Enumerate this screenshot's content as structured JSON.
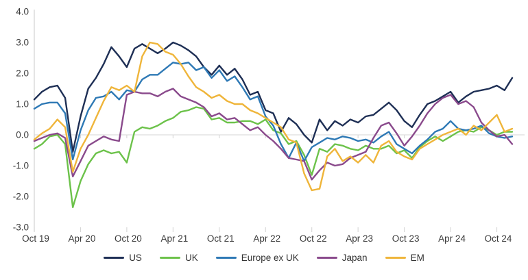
{
  "styles": {
    "background": "#ffffff",
    "axis_color": "#d6d6d6",
    "label_color": "#3a3a3a",
    "line_width": 2.4
  },
  "chart_data": {
    "type": "line",
    "title": "",
    "xlabel": "",
    "ylabel": "",
    "grid": "zero-line-only",
    "legend_position": "bottom",
    "y_axis": {
      "min": -3.0,
      "max": 4.0,
      "tick_step": 1.0,
      "tick_labels": [
        "4.0",
        "3.0",
        "2.0",
        "1.0",
        "0.0",
        "-1.0",
        "-2.0",
        "-3.0"
      ]
    },
    "x_axis": {
      "tick_labels": [
        "Oct 19",
        "Apr 20",
        "Oct 20",
        "Apr 21",
        "Oct 21",
        "Apr 22",
        "Oct 22",
        "Apr 23",
        "Oct 23",
        "Apr 24",
        "Oct 24"
      ],
      "months_between_ticks": 6
    },
    "months": [
      "2019-10",
      "2019-11",
      "2019-12",
      "2020-01",
      "2020-02",
      "2020-03",
      "2020-04",
      "2020-05",
      "2020-06",
      "2020-07",
      "2020-08",
      "2020-09",
      "2020-10",
      "2020-11",
      "2020-12",
      "2021-01",
      "2021-02",
      "2021-03",
      "2021-04",
      "2021-05",
      "2021-06",
      "2021-07",
      "2021-08",
      "2021-09",
      "2021-10",
      "2021-11",
      "2021-12",
      "2022-01",
      "2022-02",
      "2022-03",
      "2022-04",
      "2022-05",
      "2022-06",
      "2022-07",
      "2022-08",
      "2022-09",
      "2022-10",
      "2022-11",
      "2022-12",
      "2023-01",
      "2023-02",
      "2023-03",
      "2023-04",
      "2023-05",
      "2023-06",
      "2023-07",
      "2023-08",
      "2023-09",
      "2023-10",
      "2023-11",
      "2023-12",
      "2024-01",
      "2024-02",
      "2024-03",
      "2024-04",
      "2024-05",
      "2024-06",
      "2024-07",
      "2024-08",
      "2024-09",
      "2024-10",
      "2024-11",
      "2024-12"
    ],
    "series": [
      {
        "name": "US",
        "color": "#1e2f55",
        "values": [
          1.15,
          1.4,
          1.55,
          1.6,
          1.2,
          -0.55,
          0.6,
          1.5,
          1.85,
          2.3,
          2.85,
          2.55,
          2.2,
          2.8,
          2.95,
          2.8,
          2.65,
          2.8,
          3.0,
          2.9,
          2.75,
          2.55,
          2.2,
          1.95,
          2.25,
          1.95,
          2.15,
          1.8,
          1.3,
          1.4,
          0.8,
          0.7,
          0.1,
          0.55,
          0.35,
          0.0,
          -0.25,
          0.5,
          0.15,
          0.45,
          0.3,
          0.5,
          0.4,
          0.6,
          0.65,
          0.85,
          1.05,
          0.8,
          0.45,
          0.25,
          0.65,
          1.0,
          1.1,
          1.25,
          1.4,
          1.05,
          1.25,
          1.4,
          1.45,
          1.5,
          1.6,
          1.45,
          1.85
        ]
      },
      {
        "name": "UK",
        "color": "#6cc24a",
        "values": [
          -0.45,
          -0.3,
          -0.05,
          0.0,
          -0.3,
          -2.35,
          -1.5,
          -0.95,
          -0.6,
          -0.5,
          -0.6,
          -0.55,
          -0.9,
          0.1,
          0.25,
          0.2,
          0.3,
          0.45,
          0.55,
          0.75,
          0.8,
          0.9,
          0.85,
          0.5,
          0.55,
          0.4,
          0.4,
          0.45,
          0.45,
          0.35,
          0.5,
          0.15,
          0.05,
          -0.3,
          -0.2,
          -0.65,
          -1.3,
          -0.45,
          -0.55,
          -0.3,
          -0.35,
          -0.45,
          -0.5,
          -0.35,
          -0.45,
          -0.45,
          -0.35,
          -0.6,
          -0.5,
          -0.75,
          -0.4,
          -0.2,
          -0.05,
          -0.2,
          -0.05,
          0.1,
          0.15,
          0.1,
          0.25,
          0.15,
          0.0,
          0.1,
          0.1
        ]
      },
      {
        "name": "Europe ex UK",
        "color": "#2e79b5",
        "values": [
          0.85,
          1.0,
          1.05,
          1.05,
          0.7,
          -0.8,
          0.15,
          0.8,
          1.2,
          1.25,
          1.4,
          1.15,
          1.45,
          1.4,
          1.8,
          1.95,
          1.95,
          2.15,
          2.35,
          2.3,
          2.35,
          2.1,
          2.2,
          1.85,
          2.1,
          1.75,
          1.9,
          1.55,
          1.15,
          1.25,
          0.6,
          0.3,
          -0.3,
          -0.75,
          -0.25,
          -0.85,
          -0.4,
          -0.25,
          -0.1,
          -0.15,
          -0.05,
          -0.1,
          -0.2,
          -0.15,
          -0.25,
          -0.05,
          0.1,
          -0.3,
          -0.45,
          -0.6,
          -0.35,
          -0.15,
          0.1,
          0.2,
          0.45,
          0.2,
          0.15,
          0.2,
          0.3,
          0.05,
          -0.05,
          -0.1,
          -0.05
        ]
      },
      {
        "name": "Japan",
        "color": "#8a4a8c",
        "values": [
          -0.2,
          -0.1,
          0.0,
          0.05,
          -0.1,
          -1.35,
          -0.85,
          -0.35,
          -0.2,
          -0.05,
          -0.15,
          -0.2,
          1.3,
          1.4,
          1.35,
          1.35,
          1.25,
          1.4,
          1.5,
          1.25,
          1.15,
          1.05,
          0.9,
          0.6,
          0.7,
          0.5,
          0.55,
          0.35,
          0.15,
          0.25,
          0.0,
          -0.2,
          -0.45,
          -0.75,
          -0.8,
          -0.85,
          -1.45,
          -1.15,
          -0.9,
          -1.0,
          -0.95,
          -0.75,
          -0.65,
          -0.55,
          -0.1,
          0.3,
          0.4,
          0.05,
          -0.35,
          -0.05,
          0.3,
          0.7,
          1.0,
          1.2,
          1.3,
          1.0,
          1.1,
          0.9,
          0.4,
          0.15,
          -0.05,
          0.0,
          -0.3
        ]
      },
      {
        "name": "EM",
        "color": "#efb53a",
        "values": [
          -0.15,
          0.05,
          0.2,
          0.5,
          0.25,
          -1.2,
          -0.45,
          0.0,
          0.55,
          1.1,
          1.55,
          1.45,
          1.6,
          1.4,
          2.55,
          3.0,
          2.95,
          2.7,
          2.6,
          2.3,
          1.9,
          1.55,
          1.4,
          1.2,
          1.3,
          1.1,
          1.0,
          1.0,
          0.8,
          0.7,
          0.55,
          0.4,
          0.25,
          -0.15,
          -0.25,
          -1.25,
          -1.8,
          -1.75,
          -0.7,
          -0.45,
          -0.85,
          -0.7,
          -0.9,
          -0.65,
          -0.9,
          -0.35,
          -0.2,
          -0.55,
          -0.7,
          -0.8,
          -0.45,
          -0.3,
          -0.15,
          0.0,
          0.1,
          0.2,
          0.0,
          0.3,
          0.15,
          0.4,
          0.65,
          0.1,
          0.2
        ]
      }
    ]
  }
}
